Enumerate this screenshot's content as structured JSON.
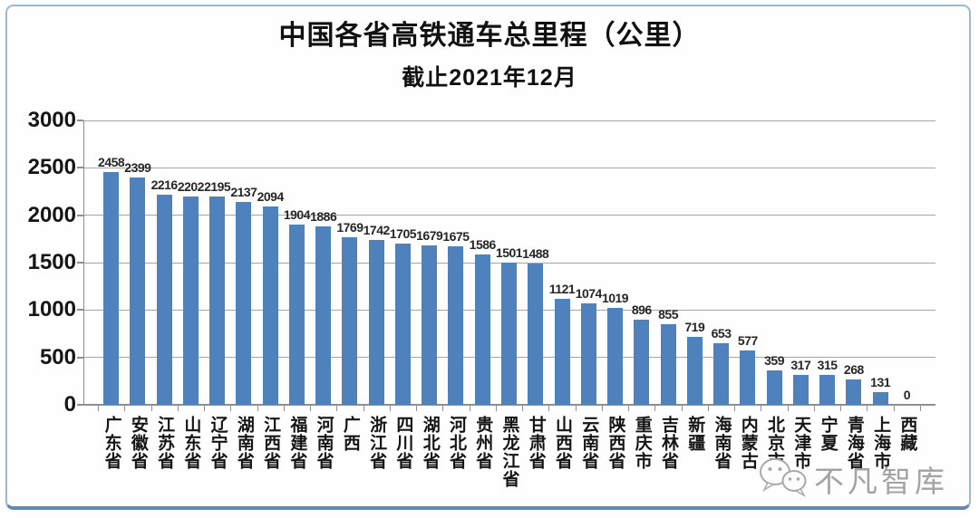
{
  "header": {
    "title": "中国各省高铁通车总里程（公里）",
    "subtitle": "截止2021年12月"
  },
  "watermark": {
    "label": "不凡智库",
    "icon": "wechat-icon"
  },
  "chart_data": {
    "type": "bar",
    "title": "中国各省高铁通车总里程（公里）",
    "subtitle": "截止2021年12月",
    "unit": "公里",
    "categories": [
      "广东省",
      "安徽省",
      "江苏省",
      "山东省",
      "辽宁省",
      "湖南省",
      "江西省",
      "福建省",
      "河南省",
      "广西",
      "浙江省",
      "四川省",
      "湖北省",
      "河北省",
      "贵州省",
      "黑龙江省",
      "甘肃省",
      "山西省",
      "云南省",
      "陕西省",
      "重庆市",
      "吉林省",
      "新疆",
      "海南省",
      "内蒙古",
      "北京市",
      "天津市",
      "宁夏",
      "青海省",
      "上海市",
      "西藏"
    ],
    "values": [
      2458,
      2399,
      2216,
      2202,
      2195,
      2137,
      2094,
      1904,
      1886,
      1769,
      1742,
      1705,
      1679,
      1675,
      1586,
      1501,
      1488,
      1121,
      1074,
      1019,
      896,
      855,
      719,
      653,
      577,
      359,
      317,
      315,
      268,
      131,
      0
    ],
    "ylim": [
      0,
      3000
    ],
    "yticks": [
      0,
      500,
      1000,
      1500,
      2000,
      2500,
      3000
    ],
    "xlabel": "",
    "ylabel": "",
    "grid": true,
    "legend": "none",
    "value_labels": true,
    "bar_color": "#4f81bd"
  },
  "colors": {
    "bar": "#4f81bd",
    "gridline": "#a6a6a6",
    "axis": "#8f8f8f",
    "text": "#151515",
    "value_label": "#262626",
    "watermark": "#a3a3a3",
    "frame_border": "#9db8cf",
    "frame_bottom": "#6189b4"
  }
}
